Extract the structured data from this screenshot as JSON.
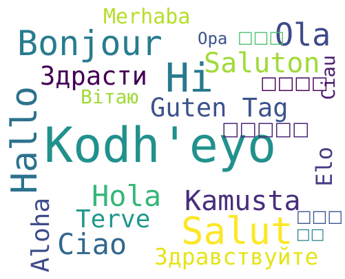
{
  "words": [
    {
      "text": "Kodh'eyo",
      "color": "#21918c"
    },
    {
      "text": "Merhaba",
      "color": "#b5de2b"
    },
    {
      "text": "Bonjour",
      "color": "#287c8e"
    },
    {
      "text": "Opa",
      "color": "#3b528b"
    },
    {
      "text": "Ola",
      "color": "#3e4a89"
    },
    {
      "text": "Saluton",
      "color": "#a0da39"
    },
    {
      "text": "Здрасти",
      "color": "#440154"
    },
    {
      "text": "Hi",
      "color": "#2a788e"
    },
    {
      "text": "Ciau",
      "color": "#481a6c"
    },
    {
      "text": "Вітаю",
      "color": "#a0da39"
    },
    {
      "text": "Guten Tag",
      "color": "#3b528b"
    },
    {
      "text": "Hallo",
      "color": "#2c728e"
    },
    {
      "text": "Elo",
      "color": "#433e85"
    },
    {
      "text": "Hola",
      "color": "#35b779"
    },
    {
      "text": "Kamusta",
      "color": "#472d7b"
    },
    {
      "text": "Aloha",
      "color": "#3e4c8a"
    },
    {
      "text": "Terve",
      "color": "#1f988b"
    },
    {
      "text": "Salut",
      "color": "#fde725"
    },
    {
      "text": "Ciao",
      "color": "#31688e"
    },
    {
      "text": "Здравствуйте",
      "color": "#e5e419"
    }
  ]
}
